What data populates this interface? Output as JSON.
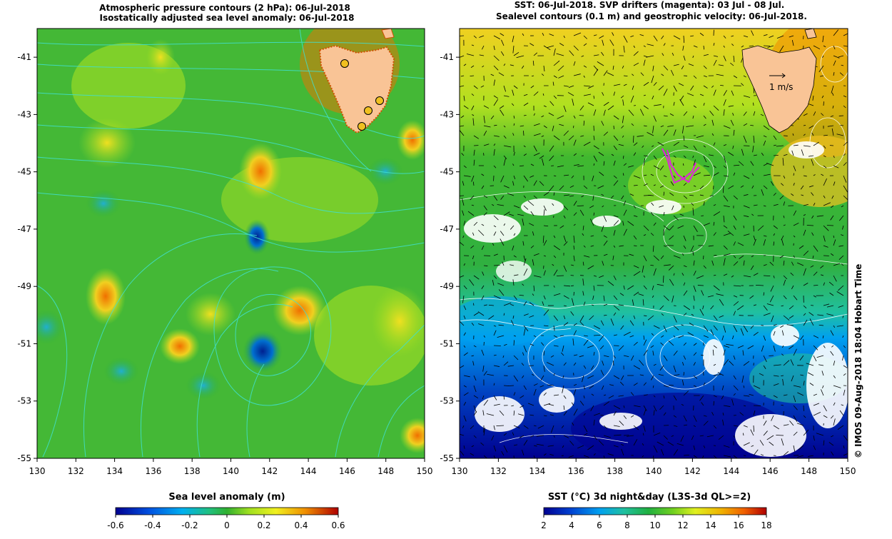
{
  "left_panel": {
    "title_line1": "Atmospheric pressure contours (2 hPa): 06-Jul-2018",
    "title_line2": "Isostatically adjusted sea level anomaly: 06-Jul-2018",
    "colorbar_title": "Sea level anomaly (m)",
    "colorbar_ticks": [
      "-0.6",
      "-0.4",
      "-0.2",
      "0",
      "0.2",
      "0.4",
      "0.6"
    ]
  },
  "right_panel": {
    "title_line1": "SST: 06-Jul-2018. SVP drifters (magenta): 03 Jul - 08 Jul.",
    "title_line2": "Sealevel contours (0.1 m) and geostrophic velocity: 06-Jul-2018.",
    "colorbar_title": "SST (°C) 3d night&day (L3S-3d QL>=2)",
    "colorbar_ticks": [
      "2",
      "4",
      "6",
      "8",
      "10",
      "12",
      "14",
      "16",
      "18"
    ],
    "scale_label": "1 m/s",
    "credit": "© IMOS 09-Aug-2018 18:04 Hobart Time"
  },
  "axes": {
    "lat_ticks": [
      "-41",
      "-43",
      "-45",
      "-47",
      "-49",
      "-51",
      "-53",
      "-55"
    ],
    "lon_ticks": [
      "130",
      "132",
      "134",
      "136",
      "138",
      "140",
      "142",
      "144",
      "146",
      "148",
      "150"
    ]
  },
  "colors": {
    "land": "#f9c496",
    "contour_cyan": "#40e0d0",
    "drifter": "#e020e0",
    "station": "#f0c020"
  }
}
